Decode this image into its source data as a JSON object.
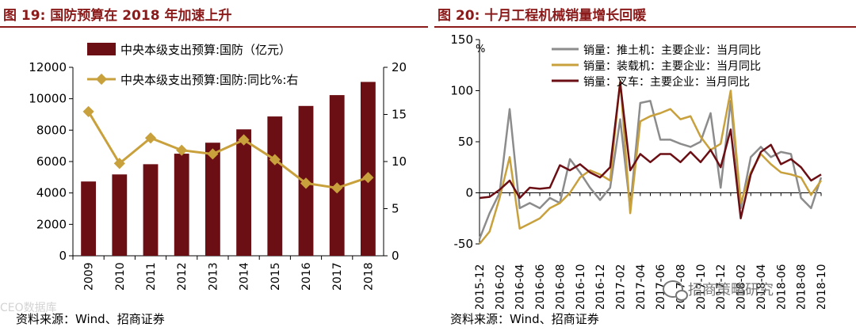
{
  "left_figure": {
    "title": "图 19:  国防预算在 2018 年加速上升",
    "source": "资料来源：Wind、招商证券",
    "watermark": "CEO数据库"
  },
  "right_figure": {
    "title": "图 20:  十月工程机械销量增长回暖",
    "source": "资料来源：Wind、招商证券",
    "watermark": "招商策略研究"
  },
  "chart_data": [
    {
      "type": "bar",
      "categories": [
        "2009",
        "2010",
        "2011",
        "2012",
        "2013",
        "2014",
        "2015",
        "2016",
        "2017",
        "2018"
      ],
      "series": [
        {
          "name": "中央本级支出预算:国防（亿元）",
          "type": "bar",
          "axis": "left",
          "values": [
            4730,
            5180,
            5830,
            6500,
            7200,
            8050,
            8870,
            9540,
            10230,
            11070
          ]
        },
        {
          "name": "中央本级支出预算:国防:同比%:右",
          "type": "line",
          "axis": "right",
          "values": [
            15.3,
            9.8,
            12.5,
            11.2,
            10.8,
            12.3,
            10.2,
            7.7,
            7.2,
            8.3
          ]
        }
      ],
      "ylim": [
        0,
        12000
      ],
      "y_ticks": [
        "0",
        "2000",
        "4000",
        "6000",
        "8000",
        "10000",
        "12000"
      ],
      "y2lim": [
        0,
        20
      ],
      "y2_ticks": [
        "0",
        "5",
        "10",
        "15",
        "20"
      ],
      "colors": {
        "bar": "#6b0f14",
        "line": "#c8a03c"
      },
      "legend": "top-center"
    },
    {
      "type": "line",
      "x": [
        "2015-12",
        "2016-01",
        "2016-02",
        "2016-03",
        "2016-04",
        "2016-05",
        "2016-06",
        "2016-07",
        "2016-08",
        "2016-09",
        "2016-10",
        "2016-11",
        "2016-12",
        "2017-01",
        "2017-02",
        "2017-03",
        "2017-04",
        "2017-05",
        "2017-06",
        "2017-07",
        "2017-08",
        "2017-09",
        "2017-10",
        "2017-11",
        "2017-12",
        "2018-01",
        "2018-02",
        "2018-03",
        "2018-04",
        "2018-05",
        "2018-06",
        "2018-07",
        "2018-08",
        "2018-09",
        "2018-10"
      ],
      "x_ticks": [
        "2015-12",
        "2016-02",
        "2016-04",
        "2016-06",
        "2016-08",
        "2016-10",
        "2016-12",
        "2017-02",
        "2017-04",
        "2017-06",
        "2017-08",
        "2017-10",
        "2017-12",
        "2018-02",
        "2018-04",
        "2018-06",
        "2018-08",
        "2018-10"
      ],
      "series": [
        {
          "name": "销量：推土机：主要企业：当月同比",
          "color": "#8c8c8c",
          "values": [
            -45,
            -20,
            0,
            82,
            -15,
            -10,
            -15,
            -5,
            -10,
            33,
            20,
            5,
            -7,
            5,
            72,
            -15,
            88,
            90,
            52,
            52,
            48,
            45,
            50,
            78,
            5,
            90,
            -15,
            35,
            45,
            35,
            40,
            38,
            -5,
            -15,
            15
          ]
        },
        {
          "name": "销量：装载机：主要企业：当月同比",
          "color": "#c8a03c",
          "values": [
            -50,
            -38,
            -5,
            35,
            -35,
            -30,
            -25,
            -15,
            -10,
            0,
            15,
            22,
            18,
            12,
            110,
            -20,
            70,
            75,
            78,
            82,
            72,
            75,
            55,
            42,
            48,
            100,
            -10,
            20,
            38,
            28,
            20,
            18,
            15,
            -2,
            12
          ]
        },
        {
          "name": "销量：叉车：主要企业：当月同比",
          "color": "#6b0f14",
          "values": [
            -5,
            -4,
            3,
            12,
            -5,
            5,
            4,
            5,
            27,
            22,
            28,
            20,
            15,
            25,
            108,
            22,
            38,
            30,
            38,
            38,
            30,
            40,
            30,
            42,
            25,
            62,
            -25,
            18,
            40,
            47,
            28,
            33,
            25,
            12,
            18
          ]
        }
      ],
      "ylim": [
        -50,
        150
      ],
      "y_ticks": [
        "-50",
        "0",
        "50",
        "100",
        "150"
      ],
      "ylabel": "%",
      "legend": "top-left"
    }
  ]
}
